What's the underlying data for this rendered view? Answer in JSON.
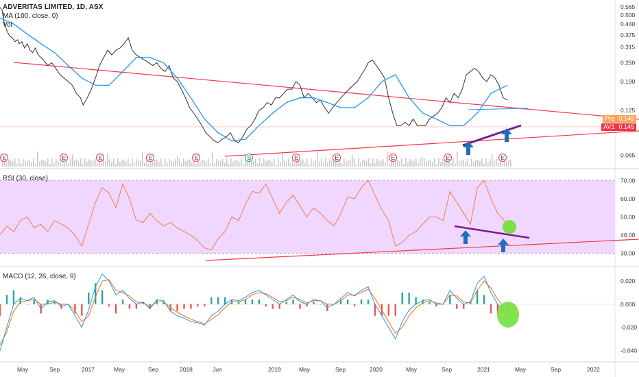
{
  "header": {
    "title": "ADVERITAS LIMITED, 1D, ASX",
    "ma_label": "MA (100, close, 0)",
    "vol_label": "Vol",
    "rsi_label": "RSI (30, close)",
    "macd_label": "MACD (12, 26, close, 9)"
  },
  "price_tags": {
    "pre_key": "Pre",
    "pre_value": "0.145",
    "av1_key": "AV1",
    "av1_value": "0.145"
  },
  "colors": {
    "price_line": "#303030",
    "ma_line": "#2196f3",
    "trendline_red": "#f23645",
    "trendline_purple": "#7b1a8c",
    "arrow_blue": "#1e6fbf",
    "rsi_line": "#f57c4a",
    "rsi_band_fill": "#efd7ff",
    "rsi_band_border": "#b39ddb",
    "macd_line": "#2196f3",
    "signal_line": "#ff6d00",
    "hist_up": "#26a69a",
    "hist_down": "#ef5350",
    "highlight_green": "#7be046",
    "volume_bar": "#c9c9c9"
  },
  "chart_data": [
    {
      "type": "line",
      "name": "price",
      "y_scale": "log",
      "ylim": [
        0.055,
        0.6
      ],
      "y_ticks": [
        "0.565",
        "0.500",
        "0.440",
        "0.375",
        "0.315",
        "0.250",
        "0.190",
        "0.125",
        "0.065"
      ],
      "x_ticks": [
        "May",
        "Sep",
        "2017",
        "May",
        "Sep",
        "2018",
        "Jun",
        "2019",
        "May",
        "Sep",
        "2020",
        "May",
        "Sep",
        "2021",
        "May",
        "Sep",
        "2022"
      ],
      "series": [
        {
          "name": "price",
          "x": [
            0,
            3,
            6,
            10,
            14,
            18,
            22,
            26,
            28,
            32,
            36,
            40,
            44,
            48,
            52,
            56,
            60,
            64,
            70,
            76,
            82,
            88,
            94,
            100,
            106,
            112,
            118,
            122,
            128,
            134,
            140,
            146,
            152,
            158,
            164,
            170,
            176,
            182,
            188,
            194,
            200,
            206,
            212,
            218,
            224,
            230,
            236,
            242,
            248,
            254,
            260,
            266,
            272,
            278,
            284,
            290,
            296,
            302,
            308,
            314,
            320,
            326,
            332,
            338,
            344,
            350,
            356,
            362,
            368,
            374,
            380,
            386,
            392,
            398,
            404,
            410,
            416,
            422,
            428,
            434,
            440,
            446,
            452,
            458,
            464,
            470,
            476,
            482,
            488,
            494,
            500,
            506,
            512,
            518,
            524,
            530,
            536,
            540,
            546,
            552,
            558,
            564,
            570,
            576,
            582,
            588,
            594,
            600,
            606,
            612,
            618,
            624,
            630,
            636,
            642,
            648,
            654,
            660,
            666,
            672,
            678,
            684,
            690,
            696,
            702,
            708,
            714,
            720,
            726,
            732,
            738,
            744
          ],
          "values": [
            0.56,
            0.54,
            0.45,
            0.4,
            0.37,
            0.36,
            0.34,
            0.35,
            0.33,
            0.34,
            0.31,
            0.33,
            0.3,
            0.29,
            0.31,
            0.28,
            0.27,
            0.26,
            0.24,
            0.25,
            0.23,
            0.21,
            0.2,
            0.19,
            0.18,
            0.16,
            0.15,
            0.135,
            0.15,
            0.17,
            0.2,
            0.24,
            0.27,
            0.3,
            0.28,
            0.3,
            0.31,
            0.33,
            0.36,
            0.3,
            0.28,
            0.27,
            0.26,
            0.25,
            0.24,
            0.25,
            0.23,
            0.22,
            0.24,
            0.2,
            0.19,
            0.17,
            0.15,
            0.13,
            0.12,
            0.11,
            0.1,
            0.09,
            0.085,
            0.08,
            0.078,
            0.082,
            0.085,
            0.09,
            0.08,
            0.078,
            0.085,
            0.095,
            0.1,
            0.11,
            0.125,
            0.13,
            0.14,
            0.135,
            0.15,
            0.15,
            0.16,
            0.17,
            0.17,
            0.19,
            0.18,
            0.15,
            0.16,
            0.15,
            0.14,
            0.145,
            0.13,
            0.12,
            0.13,
            0.14,
            0.15,
            0.16,
            0.17,
            0.18,
            0.19,
            0.21,
            0.23,
            0.25,
            0.26,
            0.24,
            0.22,
            0.2,
            0.15,
            0.12,
            0.1,
            0.1,
            0.105,
            0.1,
            0.11,
            0.1,
            0.1,
            0.1,
            0.11,
            0.115,
            0.12,
            0.13,
            0.15,
            0.14,
            0.16,
            0.15,
            0.17,
            0.21,
            0.22,
            0.23,
            0.22,
            0.2,
            0.19,
            0.21,
            0.2,
            0.18,
            0.15,
            0.145
          ]
        },
        {
          "name": "MA (100, close, 0)",
          "x": [
            0,
            20,
            40,
            60,
            80,
            100,
            120,
            140,
            160,
            180,
            200,
            220,
            240,
            260,
            280,
            300,
            320,
            340,
            360,
            380,
            400,
            420,
            440,
            460,
            480,
            500,
            520,
            540,
            560,
            580,
            600,
            620,
            640,
            660,
            680,
            700,
            720,
            744
          ],
          "values": [
            0.48,
            0.44,
            0.38,
            0.33,
            0.29,
            0.24,
            0.2,
            0.18,
            0.18,
            0.22,
            0.27,
            0.27,
            0.25,
            0.2,
            0.15,
            0.11,
            0.09,
            0.08,
            0.082,
            0.1,
            0.12,
            0.14,
            0.15,
            0.15,
            0.14,
            0.13,
            0.13,
            0.15,
            0.19,
            0.21,
            0.15,
            0.12,
            0.11,
            0.1,
            0.1,
            0.12,
            0.16,
            0.18
          ]
        }
      ]
    },
    {
      "type": "line",
      "name": "RSI (30, close)",
      "ylim": [
        25,
        75
      ],
      "y_ticks": [
        "70.00",
        "60.00",
        "50.00",
        "40.00",
        "30.00"
      ],
      "band": [
        30,
        70
      ],
      "series": [
        {
          "name": "RSI",
          "x": [
            0,
            10,
            20,
            30,
            40,
            50,
            60,
            70,
            80,
            90,
            100,
            110,
            120,
            130,
            140,
            150,
            160,
            170,
            180,
            190,
            200,
            210,
            220,
            230,
            240,
            250,
            260,
            270,
            280,
            290,
            300,
            310,
            320,
            330,
            340,
            350,
            360,
            370,
            380,
            390,
            400,
            410,
            420,
            430,
            440,
            450,
            460,
            470,
            480,
            490,
            500,
            510,
            520,
            530,
            540,
            550,
            560,
            570,
            580,
            590,
            600,
            610,
            620,
            630,
            640,
            650,
            660,
            670,
            680,
            690,
            700,
            710,
            720,
            730,
            744
          ],
          "values": [
            40,
            45,
            42,
            48,
            50,
            44,
            46,
            42,
            48,
            46,
            44,
            40,
            34,
            46,
            58,
            66,
            63,
            55,
            68,
            60,
            48,
            47,
            52,
            48,
            45,
            47,
            44,
            42,
            40,
            37,
            33,
            32,
            38,
            42,
            50,
            48,
            57,
            64,
            63,
            68,
            60,
            52,
            58,
            62,
            56,
            50,
            55,
            52,
            48,
            45,
            52,
            61,
            60,
            66,
            70,
            62,
            54,
            48,
            34,
            36,
            40,
            42,
            46,
            50,
            50,
            48,
            64,
            58,
            52,
            46,
            66,
            70,
            60,
            52,
            46
          ]
        }
      ]
    },
    {
      "type": "bar",
      "name": "MACD (12, 26, close, 9)",
      "ylim": [
        -0.048,
        0.03
      ],
      "y_ticks": [
        "0.020",
        "0.000",
        "-0.020",
        "-0.040"
      ],
      "series": [
        {
          "name": "MACD",
          "x": [
            0,
            10,
            20,
            30,
            40,
            50,
            60,
            70,
            80,
            90,
            100,
            110,
            120,
            130,
            140,
            150,
            160,
            170,
            180,
            190,
            200,
            210,
            220,
            230,
            240,
            250,
            260,
            270,
            280,
            290,
            300,
            310,
            320,
            330,
            340,
            350,
            360,
            370,
            380,
            390,
            400,
            410,
            420,
            430,
            440,
            450,
            460,
            470,
            480,
            490,
            500,
            510,
            520,
            530,
            540,
            550,
            560,
            570,
            580,
            590,
            600,
            610,
            620,
            630,
            640,
            650,
            660,
            670,
            680,
            690,
            700,
            710,
            720,
            730,
            744
          ],
          "values": [
            -0.04,
            -0.02,
            0.0,
            0.005,
            0.003,
            0.006,
            -0.004,
            0.002,
            0.003,
            -0.002,
            0.0,
            -0.01,
            -0.02,
            -0.005,
            0.015,
            0.026,
            0.02,
            0.008,
            0.012,
            0.005,
            0.0,
            0.002,
            -0.004,
            0.004,
            0.003,
            -0.006,
            -0.01,
            -0.012,
            -0.015,
            -0.016,
            -0.018,
            -0.01,
            -0.006,
            0.0,
            0.004,
            0.003,
            0.006,
            0.01,
            0.012,
            0.008,
            0.004,
            0.0,
            0.004,
            0.008,
            0.002,
            0.0,
            0.004,
            0.003,
            -0.003,
            0.0,
            0.005,
            0.01,
            0.007,
            0.012,
            0.015,
            0.0,
            -0.01,
            -0.02,
            -0.03,
            -0.015,
            -0.005,
            0.0,
            0.003,
            0.004,
            0.0,
            0.0,
            0.012,
            0.005,
            0.0,
            0.002,
            0.018,
            0.024,
            0.01,
            0.0,
            -0.01
          ]
        },
        {
          "name": "Signal",
          "x": [
            0,
            10,
            20,
            30,
            40,
            50,
            60,
            70,
            80,
            90,
            100,
            110,
            120,
            130,
            140,
            150,
            160,
            170,
            180,
            190,
            200,
            210,
            220,
            230,
            240,
            250,
            260,
            270,
            280,
            290,
            300,
            310,
            320,
            330,
            340,
            350,
            360,
            370,
            380,
            390,
            400,
            410,
            420,
            430,
            440,
            450,
            460,
            470,
            480,
            490,
            500,
            510,
            520,
            530,
            540,
            550,
            560,
            570,
            580,
            590,
            600,
            610,
            620,
            630,
            640,
            650,
            660,
            670,
            680,
            690,
            700,
            710,
            720,
            730,
            744
          ],
          "values": [
            -0.035,
            -0.024,
            -0.006,
            0.002,
            0.003,
            0.004,
            0.0,
            0.0,
            0.002,
            0.0,
            0.0,
            -0.006,
            -0.015,
            -0.01,
            0.006,
            0.02,
            0.021,
            0.012,
            0.01,
            0.007,
            0.002,
            0.001,
            -0.002,
            0.002,
            0.002,
            -0.003,
            -0.007,
            -0.01,
            -0.013,
            -0.015,
            -0.017,
            -0.013,
            -0.009,
            -0.003,
            0.002,
            0.002,
            0.004,
            0.008,
            0.01,
            0.009,
            0.006,
            0.002,
            0.003,
            0.006,
            0.004,
            0.001,
            0.003,
            0.003,
            0.0,
            0.0,
            0.003,
            0.008,
            0.008,
            0.01,
            0.013,
            0.005,
            -0.005,
            -0.015,
            -0.025,
            -0.02,
            -0.01,
            -0.003,
            0.001,
            0.003,
            0.001,
            0.0,
            0.008,
            0.007,
            0.002,
            0.001,
            0.012,
            0.02,
            0.014,
            0.004,
            -0.006
          ]
        }
      ]
    }
  ]
}
